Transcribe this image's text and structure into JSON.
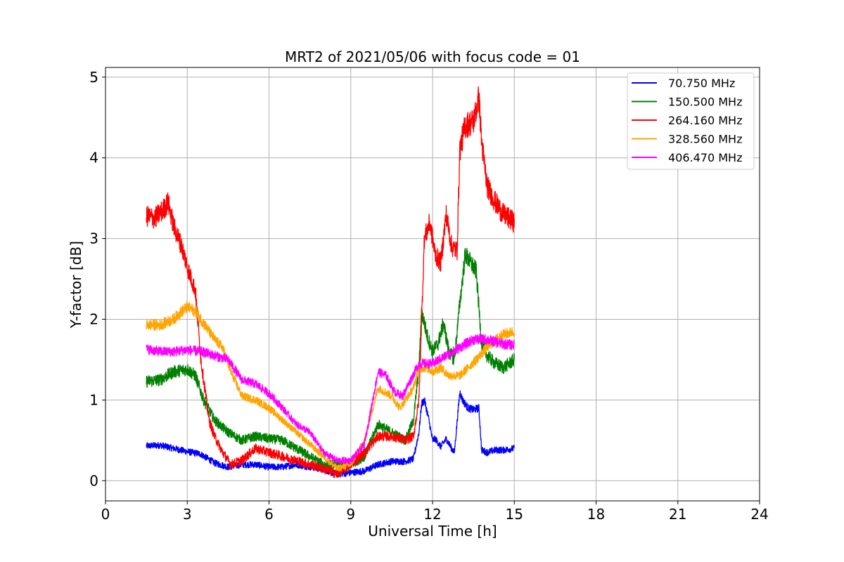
{
  "chart_data": {
    "type": "line",
    "title": "MRT2 of 2021/05/06 with focus code = 01",
    "xlabel": "Universal Time [h]",
    "ylabel": "Y-factor [dB]",
    "xlim": [
      0,
      24
    ],
    "ylim": [
      -0.25,
      5.12
    ],
    "xticks": [
      0,
      3,
      6,
      9,
      12,
      15,
      18,
      21,
      24
    ],
    "yticks": [
      0,
      1,
      2,
      3,
      4,
      5
    ],
    "grid": true,
    "legend_position": "top-right",
    "series": [
      {
        "name": " 70.750 MHz",
        "color": "#0000ff",
        "noise": 0.05,
        "x": [
          1.5,
          2.0,
          2.5,
          3.0,
          3.5,
          4.0,
          4.5,
          5.0,
          5.5,
          6.0,
          6.5,
          7.0,
          7.5,
          8.0,
          8.5,
          9.0,
          9.5,
          10.0,
          10.5,
          11.0,
          11.3,
          11.5,
          11.6,
          11.7,
          11.85,
          12.0,
          12.1,
          12.3,
          12.5,
          12.7,
          12.8,
          13.0,
          13.1,
          13.3,
          13.5,
          13.7,
          13.8,
          14.0,
          14.3,
          14.6,
          15.0
        ],
        "y": [
          0.43,
          0.44,
          0.4,
          0.36,
          0.33,
          0.22,
          0.17,
          0.2,
          0.2,
          0.17,
          0.17,
          0.2,
          0.17,
          0.14,
          0.08,
          0.1,
          0.12,
          0.2,
          0.24,
          0.24,
          0.27,
          0.6,
          0.95,
          1.0,
          0.78,
          0.5,
          0.52,
          0.42,
          0.52,
          0.4,
          0.35,
          1.1,
          1.0,
          0.9,
          0.88,
          0.9,
          0.38,
          0.35,
          0.38,
          0.38,
          0.4
        ]
      },
      {
        "name": "150.500 MHz",
        "color": "#008000",
        "noise": 0.07,
        "x": [
          1.5,
          2.0,
          2.5,
          3.0,
          3.3,
          3.6,
          4.0,
          4.5,
          5.0,
          5.5,
          6.0,
          6.5,
          7.0,
          7.5,
          8.0,
          8.5,
          9.0,
          9.5,
          10.0,
          10.5,
          11.0,
          11.3,
          11.5,
          11.6,
          11.8,
          12.0,
          12.2,
          12.4,
          12.6,
          12.8,
          13.0,
          13.2,
          13.4,
          13.6,
          13.8,
          14.0,
          14.3,
          14.6,
          15.0
        ],
        "y": [
          1.23,
          1.25,
          1.35,
          1.38,
          1.3,
          1.0,
          0.75,
          0.6,
          0.5,
          0.55,
          0.52,
          0.5,
          0.4,
          0.3,
          0.2,
          0.2,
          0.2,
          0.3,
          0.7,
          0.6,
          0.5,
          0.75,
          1.4,
          2.1,
          1.8,
          1.6,
          1.7,
          1.95,
          1.6,
          1.5,
          2.2,
          2.8,
          2.7,
          2.6,
          1.7,
          1.55,
          1.45,
          1.4,
          1.5
        ]
      },
      {
        "name": "264.160 MHz",
        "color": "#ff0000",
        "noise": 0.07,
        "x": [
          1.5,
          1.8,
          2.1,
          2.3,
          2.5,
          2.8,
          3.0,
          3.3,
          3.5,
          3.8,
          4.0,
          4.3,
          4.6,
          5.0,
          5.5,
          6.0,
          6.5,
          7.0,
          7.5,
          8.0,
          8.5,
          9.0,
          9.5,
          10.0,
          10.5,
          11.0,
          11.3,
          11.5,
          11.7,
          11.9,
          12.1,
          12.3,
          12.5,
          12.7,
          12.9,
          13.0,
          13.2,
          13.5,
          13.7,
          13.8,
          14.0,
          14.3,
          14.6,
          15.0
        ],
        "y": [
          3.28,
          3.25,
          3.35,
          3.45,
          3.15,
          2.9,
          2.65,
          2.35,
          1.5,
          0.75,
          0.55,
          0.35,
          0.2,
          0.25,
          0.4,
          0.35,
          0.3,
          0.25,
          0.2,
          0.15,
          0.08,
          0.2,
          0.35,
          0.55,
          0.55,
          0.5,
          0.55,
          1.0,
          3.0,
          3.2,
          2.8,
          2.7,
          3.3,
          2.9,
          2.85,
          4.1,
          4.4,
          4.45,
          4.75,
          4.2,
          3.65,
          3.45,
          3.3,
          3.2
        ]
      },
      {
        "name": "328.560 MHz",
        "color": "#ffa500",
        "noise": 0.05,
        "x": [
          1.5,
          2.0,
          2.5,
          2.8,
          3.0,
          3.3,
          3.6,
          4.0,
          4.3,
          4.6,
          5.0,
          5.5,
          6.0,
          6.5,
          7.0,
          7.5,
          8.0,
          8.5,
          9.0,
          9.5,
          10.0,
          10.5,
          10.8,
          11.0,
          11.3,
          11.5,
          11.8,
          12.0,
          12.3,
          12.6,
          13.0,
          13.3,
          13.6,
          14.0,
          14.5,
          15.0
        ],
        "y": [
          1.93,
          1.93,
          2.0,
          2.1,
          2.15,
          2.1,
          1.95,
          1.75,
          1.65,
          1.35,
          1.05,
          1.0,
          0.9,
          0.75,
          0.6,
          0.45,
          0.3,
          0.15,
          0.2,
          0.5,
          1.15,
          1.05,
          0.9,
          1.0,
          1.15,
          1.4,
          1.4,
          1.35,
          1.4,
          1.3,
          1.3,
          1.4,
          1.5,
          1.65,
          1.8,
          1.85
        ]
      },
      {
        "name": "406.470 MHz",
        "color": "#ff00ff",
        "noise": 0.05,
        "x": [
          1.5,
          2.0,
          2.5,
          3.0,
          3.5,
          4.0,
          4.5,
          5.0,
          5.5,
          6.0,
          6.5,
          7.0,
          7.5,
          8.0,
          8.5,
          9.0,
          9.5,
          10.0,
          10.3,
          10.6,
          10.9,
          11.2,
          11.5,
          12.0,
          12.5,
          13.0,
          13.5,
          14.0,
          14.5,
          15.0
        ],
        "y": [
          1.63,
          1.6,
          1.6,
          1.62,
          1.6,
          1.55,
          1.5,
          1.25,
          1.2,
          1.08,
          0.9,
          0.7,
          0.6,
          0.35,
          0.25,
          0.25,
          0.45,
          1.35,
          1.3,
          1.1,
          1.05,
          1.25,
          1.45,
          1.45,
          1.55,
          1.65,
          1.75,
          1.75,
          1.7,
          1.68
        ]
      }
    ]
  }
}
